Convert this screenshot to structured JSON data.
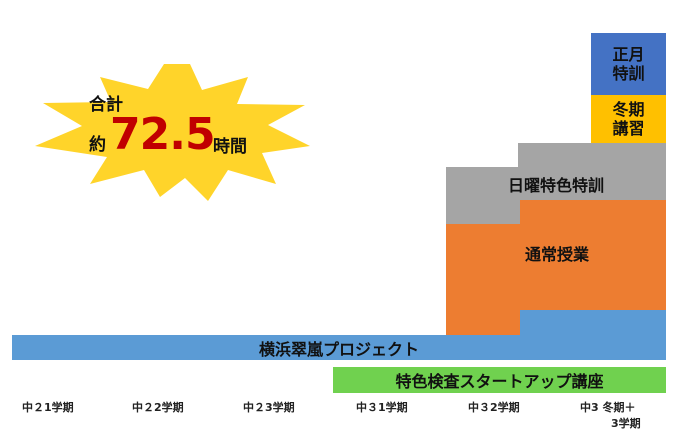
{
  "starburst": {
    "line1": "合計",
    "prefix": "約",
    "number": "72.5",
    "suffix": "時間"
  },
  "bars": {
    "yokohama": "横浜翠嵐プロジェクト",
    "tokushoku_kensa": "特色検査スタートアップ講座",
    "tsujo": "通常授業",
    "nichiyo": "日曜特色特訓",
    "toki_line1": "冬期",
    "toki_line2": "講習",
    "shogatsu_line1": "正月",
    "shogatsu_line2": "特訓"
  },
  "terms": [
    "中２1学期",
    "中２2学期",
    "中２3学期",
    "中３1学期",
    "中３2学期",
    "中3 冬期＋",
    "3学期"
  ],
  "colors": {
    "blue": "#5b9bd5",
    "orange": "#ed7d31",
    "gray": "#a5a5a5",
    "yellow": "#ffc000",
    "navy": "#4472c4",
    "green": "#70d14f",
    "starburst": "#ffd42a",
    "total_number": "#c00000"
  }
}
